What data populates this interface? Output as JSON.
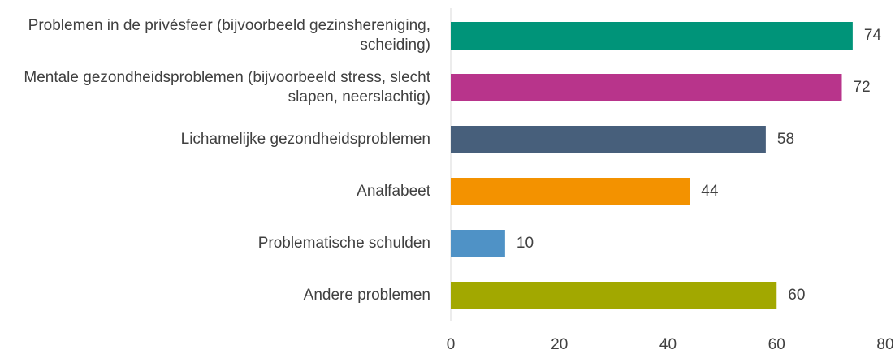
{
  "chart_data": {
    "type": "barh",
    "categories": [
      "Problemen in de privésfeer (bijvoorbeeld gezinshereniging, scheiding)",
      "Mentale gezondheidsproblemen (bijvoorbeeld stress, slecht slapen, neerslachtig)",
      "Lichamelijke gezondheidsproblemen",
      "Analfabeet",
      "Problematische schulden",
      "Andere problemen"
    ],
    "values": [
      74,
      72,
      58,
      44,
      10,
      60
    ],
    "colors": [
      "#009479",
      "#b8348b",
      "#475f7b",
      "#f39200",
      "#4f92c6",
      "#a2a800"
    ],
    "xlim": [
      0,
      80
    ],
    "xticks": [
      0,
      20,
      40,
      60,
      80
    ],
    "grid": false
  }
}
